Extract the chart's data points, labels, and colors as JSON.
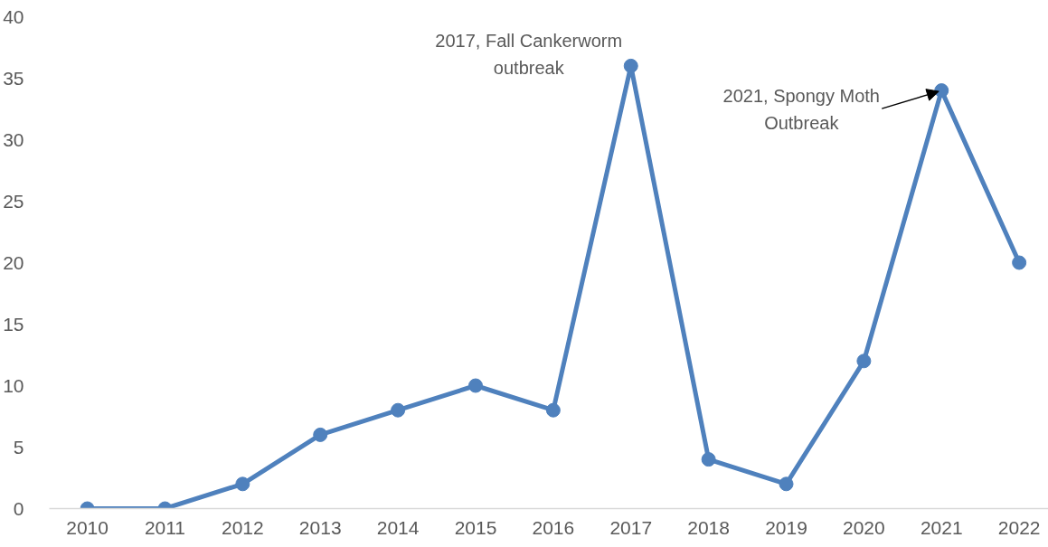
{
  "chart_data": {
    "type": "line",
    "categories": [
      "2010",
      "2011",
      "2012",
      "2013",
      "2014",
      "2015",
      "2016",
      "2017",
      "2018",
      "2019",
      "2020",
      "2021",
      "2022"
    ],
    "series": [
      {
        "color": "#4f81bd",
        "values": [
          0,
          0,
          2,
          6,
          8,
          10,
          8,
          36,
          4,
          2,
          12,
          34,
          20
        ]
      }
    ],
    "ylim": [
      0,
      40
    ],
    "yticks": [
      0,
      5,
      10,
      15,
      20,
      25,
      30,
      35,
      40
    ],
    "marker": "circle",
    "line_style": "solid",
    "annotations": [
      {
        "text": "2017, Fall Cankerworm\noutbreak",
        "x": "2017",
        "y": 36
      },
      {
        "text": "2021, Spongy Moth\nOutbreak",
        "x": "2021",
        "y": 34
      }
    ]
  }
}
